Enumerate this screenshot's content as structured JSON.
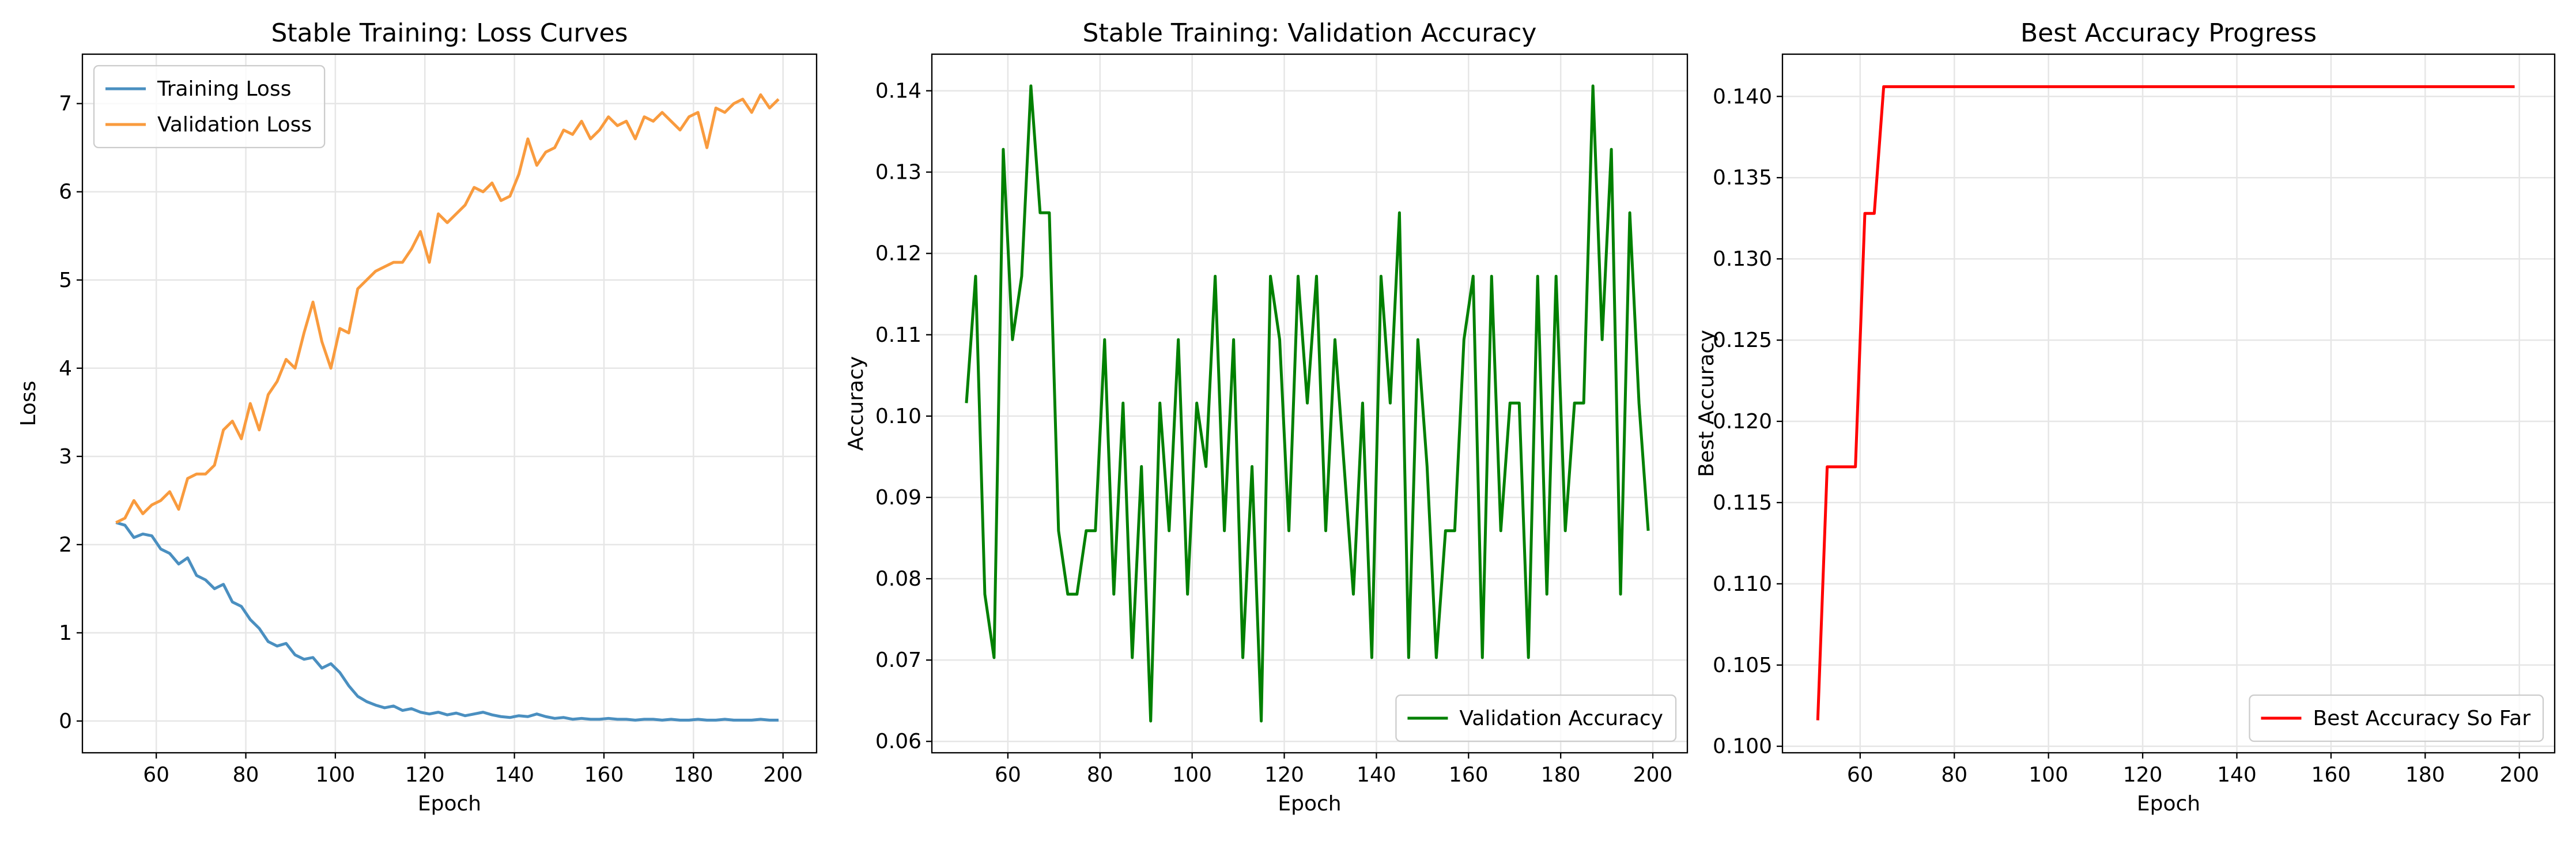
{
  "chart_data": [
    {
      "type": "line",
      "title": "Stable Training: Loss Curves",
      "x_label": "Epoch",
      "y_label": "Loss",
      "x": [
        51,
        53,
        55,
        57,
        59,
        61,
        63,
        65,
        67,
        69,
        71,
        73,
        75,
        77,
        79,
        81,
        83,
        85,
        87,
        89,
        91,
        93,
        95,
        97,
        99,
        101,
        103,
        105,
        107,
        109,
        111,
        113,
        115,
        117,
        119,
        121,
        123,
        125,
        127,
        129,
        131,
        133,
        135,
        137,
        139,
        141,
        143,
        145,
        147,
        149,
        151,
        153,
        155,
        157,
        159,
        161,
        163,
        165,
        167,
        169,
        171,
        173,
        175,
        177,
        179,
        181,
        183,
        185,
        187,
        189,
        191,
        193,
        195,
        197,
        199
      ],
      "series": [
        {
          "name": "Training Loss",
          "color": "#4a8fc0",
          "values": [
            2.25,
            2.22,
            2.08,
            2.12,
            2.1,
            1.95,
            1.9,
            1.78,
            1.85,
            1.65,
            1.6,
            1.5,
            1.55,
            1.35,
            1.3,
            1.15,
            1.05,
            0.9,
            0.85,
            0.88,
            0.75,
            0.7,
            0.72,
            0.6,
            0.65,
            0.55,
            0.4,
            0.28,
            0.22,
            0.18,
            0.15,
            0.17,
            0.12,
            0.14,
            0.1,
            0.08,
            0.1,
            0.07,
            0.09,
            0.06,
            0.08,
            0.1,
            0.07,
            0.05,
            0.04,
            0.06,
            0.05,
            0.08,
            0.05,
            0.03,
            0.04,
            0.02,
            0.03,
            0.02,
            0.02,
            0.03,
            0.02,
            0.02,
            0.01,
            0.02,
            0.02,
            0.01,
            0.02,
            0.01,
            0.01,
            0.02,
            0.01,
            0.01,
            0.02,
            0.01,
            0.01,
            0.01,
            0.02,
            0.01,
            0.01
          ]
        },
        {
          "name": "Validation Loss",
          "color": "#f99b3e",
          "values": [
            2.25,
            2.3,
            2.5,
            2.35,
            2.45,
            2.5,
            2.6,
            2.4,
            2.75,
            2.8,
            2.8,
            2.9,
            3.3,
            3.4,
            3.2,
            3.6,
            3.3,
            3.7,
            3.85,
            4.1,
            4.0,
            4.4,
            4.75,
            4.3,
            4.0,
            4.45,
            4.4,
            4.9,
            5.0,
            5.1,
            5.15,
            5.2,
            5.2,
            5.35,
            5.55,
            5.2,
            5.75,
            5.65,
            5.75,
            5.85,
            6.05,
            6.0,
            6.1,
            5.9,
            5.95,
            6.2,
            6.6,
            6.3,
            6.45,
            6.5,
            6.7,
            6.65,
            6.8,
            6.6,
            6.7,
            6.85,
            6.75,
            6.8,
            6.6,
            6.85,
            6.8,
            6.9,
            6.8,
            6.7,
            6.85,
            6.9,
            6.5,
            6.95,
            6.9,
            7.0,
            7.05,
            6.9,
            7.1,
            6.95,
            7.05
          ]
        }
      ],
      "xlim": [
        43.5,
        207.5
      ],
      "ylim": [
        -0.36,
        7.56
      ],
      "xticks": [
        60,
        80,
        100,
        120,
        140,
        160,
        180,
        200
      ],
      "yticks": [
        0,
        1,
        2,
        3,
        4,
        5,
        6,
        7
      ],
      "grid": true,
      "legend": "upper left"
    },
    {
      "type": "line",
      "title": "Stable Training: Validation Accuracy",
      "x_label": "Epoch",
      "y_label": "Accuracy",
      "x": [
        51,
        53,
        55,
        57,
        59,
        61,
        63,
        65,
        67,
        69,
        71,
        73,
        75,
        77,
        79,
        81,
        83,
        85,
        87,
        89,
        91,
        93,
        95,
        97,
        99,
        101,
        103,
        105,
        107,
        109,
        111,
        113,
        115,
        117,
        119,
        121,
        123,
        125,
        127,
        129,
        131,
        133,
        135,
        137,
        139,
        141,
        143,
        145,
        147,
        149,
        151,
        153,
        155,
        157,
        159,
        161,
        163,
        165,
        167,
        169,
        171,
        173,
        175,
        177,
        179,
        181,
        183,
        185,
        187,
        189,
        191,
        193,
        195,
        197,
        199
      ],
      "series": [
        {
          "name": "Validation Accuracy",
          "color": "#008000",
          "values": [
            0.1016,
            0.1172,
            0.0781,
            0.0703,
            0.1328,
            0.1094,
            0.1172,
            0.1406,
            0.125,
            0.125,
            0.0859,
            0.0781,
            0.0781,
            0.0859,
            0.0859,
            0.1094,
            0.0781,
            0.1016,
            0.0703,
            0.0938,
            0.0625,
            0.1016,
            0.0859,
            0.1094,
            0.0781,
            0.1016,
            0.0938,
            0.1172,
            0.0859,
            0.1094,
            0.0703,
            0.0938,
            0.0625,
            0.1172,
            0.1094,
            0.0859,
            0.1172,
            0.1016,
            0.1172,
            0.0859,
            0.1094,
            0.0938,
            0.0781,
            0.1016,
            0.0703,
            0.1172,
            0.1016,
            0.125,
            0.0703,
            0.1094,
            0.0938,
            0.0703,
            0.0859,
            0.0859,
            0.1094,
            0.1172,
            0.0703,
            0.1172,
            0.0859,
            0.1016,
            0.1016,
            0.0703,
            0.1172,
            0.0781,
            0.1172,
            0.0859,
            0.1016,
            0.1016,
            0.1406,
            0.1094,
            0.1328,
            0.0781,
            0.125,
            0.1016,
            0.0859
          ]
        }
      ],
      "xlim": [
        43.5,
        207.5
      ],
      "ylim": [
        0.0586,
        0.1445
      ],
      "xticks": [
        60,
        80,
        100,
        120,
        140,
        160,
        180,
        200
      ],
      "yticks": [
        0.06,
        0.07,
        0.08,
        0.09,
        {
          "value": 0.1,
          "label": "0.10"
        },
        0.11,
        0.12,
        0.13,
        0.14
      ],
      "grid": true,
      "legend": "lower right"
    },
    {
      "type": "line",
      "title": "Best Accuracy Progress",
      "x_label": "Epoch",
      "y_label": "Best Accuracy",
      "x": [
        51,
        53,
        55,
        57,
        59,
        61,
        63,
        65,
        67,
        69,
        71,
        73,
        75,
        77,
        79,
        81,
        83,
        85,
        87,
        89,
        91,
        93,
        95,
        97,
        99,
        101,
        103,
        105,
        107,
        109,
        111,
        113,
        115,
        117,
        119,
        121,
        123,
        125,
        127,
        129,
        131,
        133,
        135,
        137,
        139,
        141,
        143,
        145,
        147,
        149,
        151,
        153,
        155,
        157,
        159,
        161,
        163,
        165,
        167,
        169,
        171,
        173,
        175,
        177,
        179,
        181,
        183,
        185,
        187,
        189,
        191,
        193,
        195,
        197,
        199
      ],
      "series": [
        {
          "name": "Best Accuracy So Far",
          "color": "#ff0000",
          "values": [
            0.1016,
            0.1172,
            0.1172,
            0.1172,
            0.1172,
            0.1328,
            0.1328,
            0.1406,
            0.1406,
            0.1406,
            0.1406,
            0.1406,
            0.1406,
            0.1406,
            0.1406,
            0.1406,
            0.1406,
            0.1406,
            0.1406,
            0.1406,
            0.1406,
            0.1406,
            0.1406,
            0.1406,
            0.1406,
            0.1406,
            0.1406,
            0.1406,
            0.1406,
            0.1406,
            0.1406,
            0.1406,
            0.1406,
            0.1406,
            0.1406,
            0.1406,
            0.1406,
            0.1406,
            0.1406,
            0.1406,
            0.1406,
            0.1406,
            0.1406,
            0.1406,
            0.1406,
            0.1406,
            0.1406,
            0.1406,
            0.1406,
            0.1406,
            0.1406,
            0.1406,
            0.1406,
            0.1406,
            0.1406,
            0.1406,
            0.1406,
            0.1406,
            0.1406,
            0.1406,
            0.1406,
            0.1406,
            0.1406,
            0.1406,
            0.1406,
            0.1406,
            0.1406,
            0.1406,
            0.1406,
            0.1406,
            0.1406,
            0.1406,
            0.1406,
            0.1406,
            0.1406
          ]
        }
      ],
      "xlim": [
        43.5,
        207.5
      ],
      "ylim": [
        0.0996,
        0.1426
      ],
      "xticks": [
        60,
        80,
        100,
        120,
        140,
        160,
        180,
        200
      ],
      "yticks": [
        {
          "value": 0.1,
          "label": "0.100"
        },
        0.105,
        {
          "value": 0.11,
          "label": "0.110"
        },
        0.115,
        {
          "value": 0.12,
          "label": "0.120"
        },
        0.125,
        {
          "value": 0.13,
          "label": "0.130"
        },
        0.135,
        {
          "value": 0.14,
          "label": "0.140"
        }
      ],
      "grid": true,
      "legend": "lower right"
    }
  ]
}
